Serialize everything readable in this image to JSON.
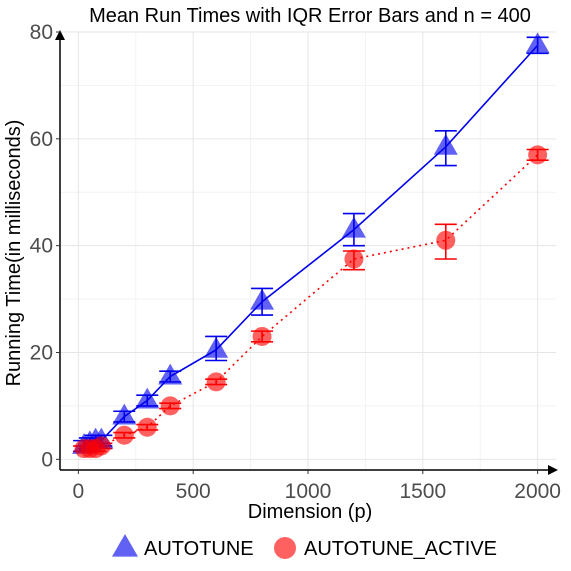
{
  "chart_data": {
    "type": "line",
    "title": "Mean Run Times with IQR Error Bars and n = 400",
    "xlabel": "Dimension (p)",
    "ylabel": "Running Time(in milliseconds)",
    "xlim": [
      -80,
      2080
    ],
    "ylim": [
      -2,
      80
    ],
    "xticks": [
      0,
      500,
      1000,
      1500,
      2000
    ],
    "yticks": [
      0,
      20,
      40,
      60,
      80
    ],
    "grid": true,
    "legend_position": "bottom",
    "series": [
      {
        "name": "AUTOTUNE",
        "marker": "triangle",
        "line_style": "solid",
        "color": "#0000ee",
        "points": [
          {
            "x": 25,
            "y": 2.5,
            "low": 1.5,
            "high": 3.5
          },
          {
            "x": 50,
            "y": 3.0,
            "low": 2.0,
            "high": 4.0
          },
          {
            "x": 75,
            "y": 3.5,
            "low": 2.5,
            "high": 4.5
          },
          {
            "x": 100,
            "y": 3.5,
            "low": 2.5,
            "high": 4.5
          },
          {
            "x": 200,
            "y": 8.0,
            "low": 7.0,
            "high": 9.0
          },
          {
            "x": 300,
            "y": 11.0,
            "low": 10.0,
            "high": 12.0
          },
          {
            "x": 400,
            "y": 15.5,
            "low": 14.5,
            "high": 16.5
          },
          {
            "x": 600,
            "y": 20.5,
            "low": 18.5,
            "high": 23.0
          },
          {
            "x": 800,
            "y": 29.5,
            "low": 27.0,
            "high": 32.0
          },
          {
            "x": 1200,
            "y": 43.0,
            "low": 40.0,
            "high": 46.0
          },
          {
            "x": 1600,
            "y": 58.5,
            "low": 55.0,
            "high": 61.5
          },
          {
            "x": 2000,
            "y": 77.5,
            "low": 76.0,
            "high": 79.0
          }
        ]
      },
      {
        "name": "AUTOTUNE_ACTIVE",
        "marker": "circle",
        "line_style": "dotted",
        "color": "#ff0000",
        "points": [
          {
            "x": 25,
            "y": 2.0,
            "low": 1.5,
            "high": 2.5
          },
          {
            "x": 50,
            "y": 2.0,
            "low": 1.5,
            "high": 2.5
          },
          {
            "x": 75,
            "y": 2.0,
            "low": 1.5,
            "high": 2.5
          },
          {
            "x": 100,
            "y": 2.5,
            "low": 2.0,
            "high": 3.0
          },
          {
            "x": 200,
            "y": 4.5,
            "low": 4.0,
            "high": 5.0
          },
          {
            "x": 300,
            "y": 6.0,
            "low": 5.5,
            "high": 6.5
          },
          {
            "x": 400,
            "y": 10.0,
            "low": 9.5,
            "high": 10.5
          },
          {
            "x": 600,
            "y": 14.5,
            "low": 14.0,
            "high": 15.0
          },
          {
            "x": 800,
            "y": 23.0,
            "low": 22.0,
            "high": 24.0
          },
          {
            "x": 1200,
            "y": 37.5,
            "low": 35.5,
            "high": 39.0
          },
          {
            "x": 1600,
            "y": 41.0,
            "low": 37.5,
            "high": 44.0
          },
          {
            "x": 2000,
            "y": 57.0,
            "low": 56.0,
            "high": 58.0
          }
        ]
      }
    ]
  }
}
